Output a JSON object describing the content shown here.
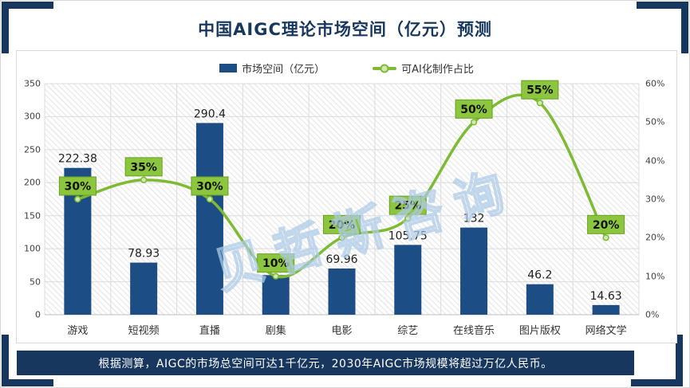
{
  "title": "中国AIGC理论市场空间（亿元）预测",
  "watermark": "贝哲斯咨询",
  "legend": {
    "bar_label": "市场空间（亿元）",
    "line_label": "可AI化制作占比"
  },
  "footer": "根据测算，AIGC的市场总空间可达1千亿元，2030年AIGC市场规模将超过万亿人民币。",
  "colors": {
    "navy_frame": "#17375E",
    "bar_fill": "#1C4E85",
    "line_green": "#7DBB33",
    "marker_fill": "#D2E8AF",
    "label_box_fill": "#8CC63F",
    "label_box_border": "#69A01F",
    "gridline": "#DCDCDC",
    "axis_line": "#BFBFBF",
    "axis_text": "#404040",
    "watermark_stroke": "#AECBE8"
  },
  "chart_data": {
    "type": "bar+line",
    "title": "中国AIGC理论市场空间（亿元）预测",
    "categories": [
      "游戏",
      "短视频",
      "直播",
      "剧集",
      "电影",
      "综艺",
      "在线音乐",
      "图片版权",
      "网络文学"
    ],
    "series": [
      {
        "name": "市场空间（亿元）",
        "type": "bar",
        "axis": "left",
        "values": [
          222.38,
          78.93,
          290.4,
          60,
          69.96,
          105.75,
          132,
          46.2,
          14.63
        ],
        "labels": [
          "222.38",
          "78.93",
          "290.4",
          "",
          "69.96",
          "105.75",
          "132",
          "46.2",
          "14.63"
        ]
      },
      {
        "name": "可AI化制作占比",
        "type": "line",
        "axis": "right",
        "values": [
          30,
          35,
          30,
          10,
          20,
          25,
          50,
          55,
          20
        ],
        "labels": [
          "30%",
          "35%",
          "30%",
          "10%",
          "20%",
          "25%",
          "50%",
          "55%",
          "20%"
        ]
      }
    ],
    "left_axis": {
      "min": 0,
      "max": 350,
      "step": 50,
      "ticks": [
        "0",
        "50",
        "100",
        "150",
        "200",
        "250",
        "300",
        "350"
      ]
    },
    "right_axis": {
      "min": 0,
      "max": 60,
      "step": 10,
      "ticks": [
        "0%",
        "10%",
        "20%",
        "30%",
        "40%",
        "50%",
        "60%"
      ],
      "format": "percent"
    },
    "grid": true,
    "legend_position": "top"
  }
}
